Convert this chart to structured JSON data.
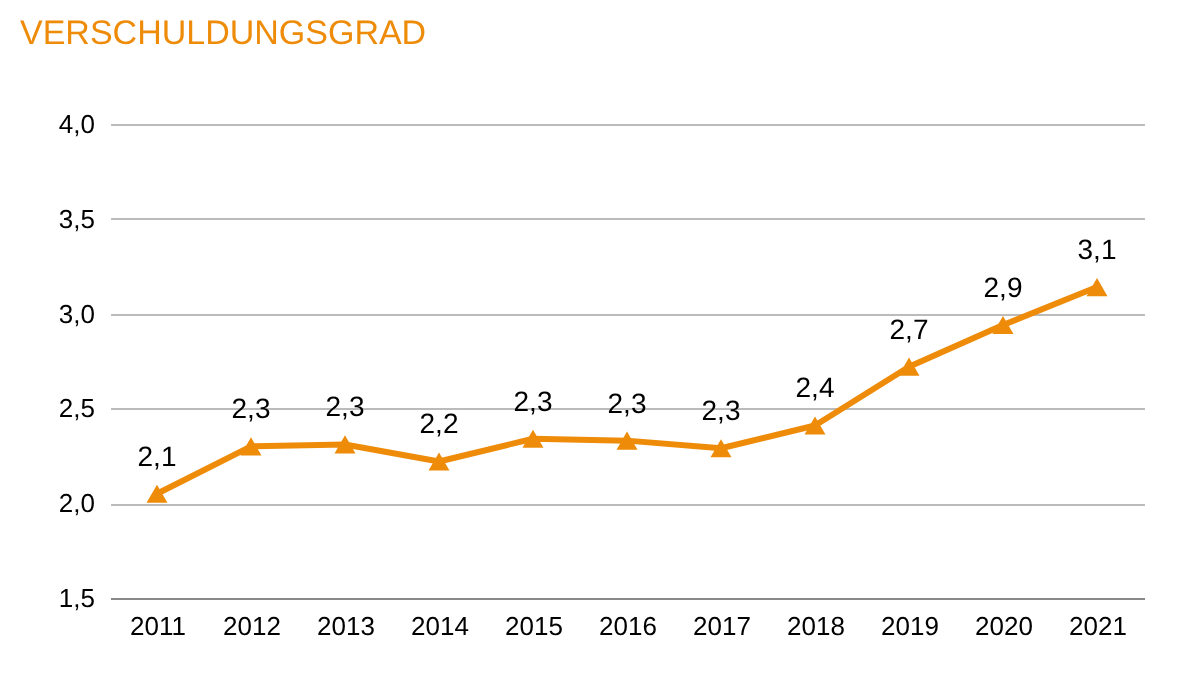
{
  "chart_data": {
    "type": "line",
    "title": "VERSCHULDUNGSGRAD",
    "categories": [
      "2011",
      "2012",
      "2013",
      "2014",
      "2015",
      "2016",
      "2017",
      "2018",
      "2019",
      "2020",
      "2021"
    ],
    "series": [
      {
        "color": "#ee8c0a",
        "values": [
          2.05,
          2.3,
          2.31,
          2.22,
          2.34,
          2.33,
          2.29,
          2.41,
          2.72,
          2.94,
          3.14
        ],
        "value_labels": [
          "2,1",
          "2,3",
          "2,3",
          "2,2",
          "2,3",
          "2,3",
          "2,3",
          "2,4",
          "2,7",
          "2,9",
          "3,1"
        ]
      }
    ],
    "ylim": [
      1.5,
      4.0
    ],
    "yticks": [
      {
        "value": 1.5,
        "label": "1,5"
      },
      {
        "value": 2.0,
        "label": "2,0"
      },
      {
        "value": 2.5,
        "label": "2,5"
      },
      {
        "value": 3.0,
        "label": "3,0"
      },
      {
        "value": 3.5,
        "label": "3,5"
      },
      {
        "value": 4.0,
        "label": "4,0"
      }
    ],
    "grid": "y",
    "marker": "triangle",
    "line_style": "solid"
  }
}
